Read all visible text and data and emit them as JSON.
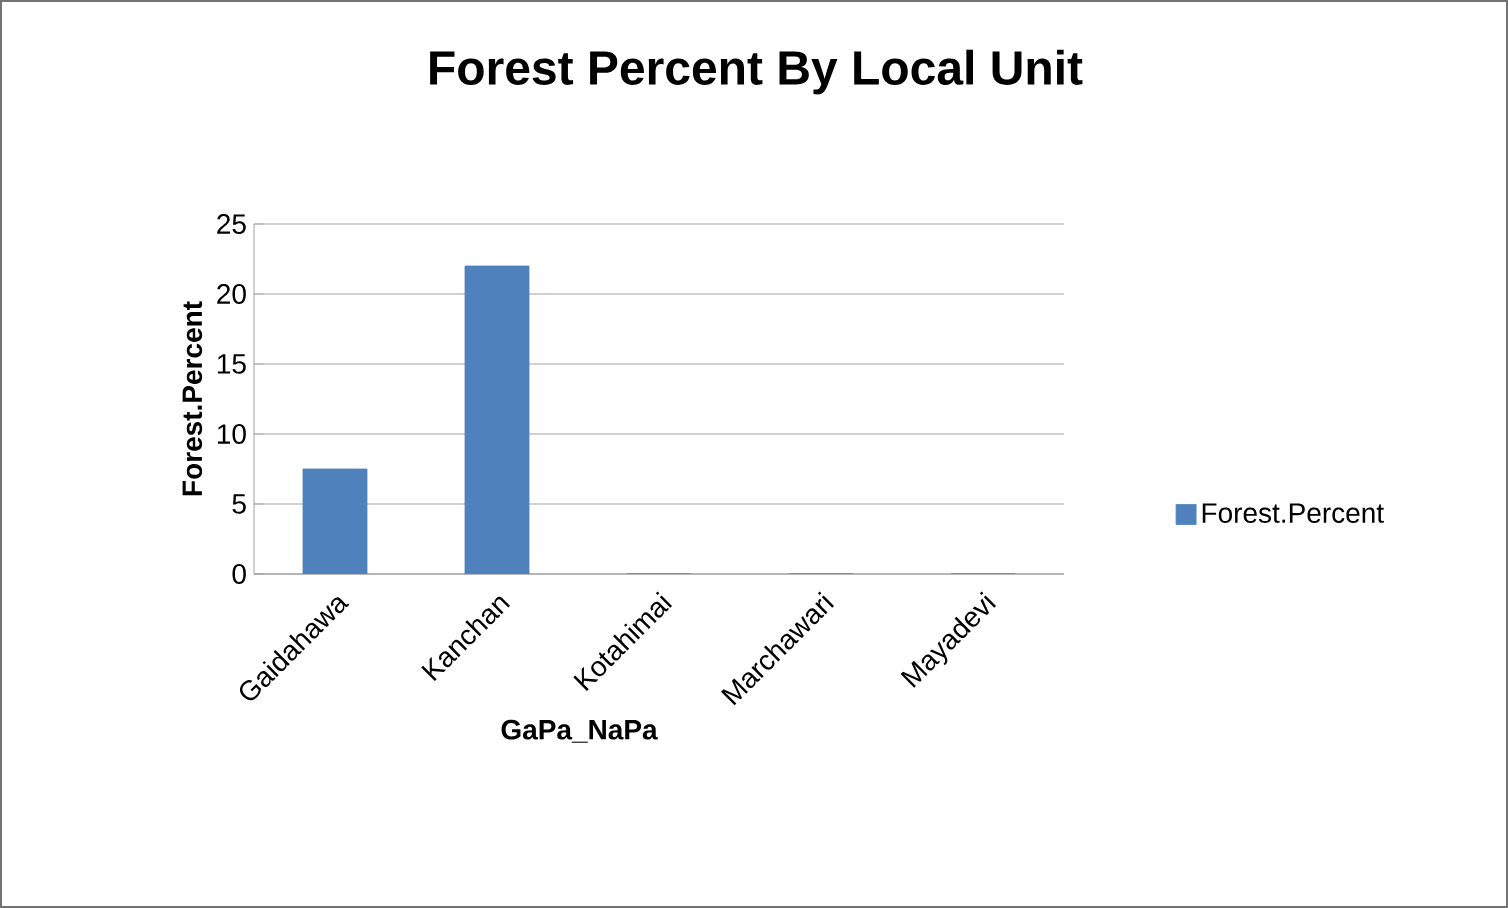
{
  "chart_data": {
    "type": "bar",
    "title": "Forest Percent By Local Unit",
    "xlabel": "GaPa_NaPa",
    "ylabel": "Forest.Percent",
    "categories": [
      "Gaidahawa",
      "Kanchan",
      "Kotahimai",
      "Marchawari",
      "Mayadevi"
    ],
    "series": [
      {
        "name": "Forest.Percent",
        "color": "#4f81bd",
        "values": [
          7.5,
          22,
          0,
          0,
          0
        ]
      }
    ],
    "ylim": [
      0,
      25
    ],
    "yticks": [
      0,
      5,
      10,
      15,
      20,
      25
    ],
    "grid": "y",
    "legend": "right"
  }
}
